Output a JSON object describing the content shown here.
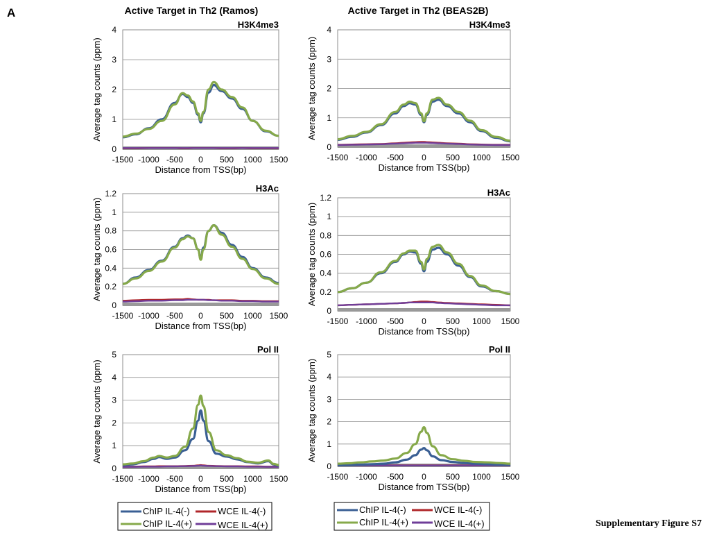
{
  "figure": {
    "panel_letter": "A",
    "column_titles": [
      "Active Target in Th2 (Ramos)",
      "Active Target in Th2 (BEAS2B)"
    ],
    "supplementary_label": "Supplementary Figure S7"
  },
  "legend": {
    "entries": [
      {
        "name": "ChIP IL-4(-)",
        "color": "#3A5F94"
      },
      {
        "name": "WCE IL-4(-)",
        "color": "#B0262A"
      },
      {
        "name": "ChIP IL-4(+)",
        "color": "#86A94A"
      },
      {
        "name": "WCE IL-4(+)",
        "color": "#6F3D98"
      }
    ]
  },
  "colors": {
    "chip_minus": "#3A5F94",
    "chip_plus": "#86A94A",
    "wce_minus": "#B0262A",
    "wce_plus": "#6F3D98",
    "baseline_band": "#999999",
    "gridline": "#8C8C8C"
  },
  "chart_data": [
    {
      "type": "line",
      "column": "Ramos",
      "title": "H3K4me3",
      "xlabel": "Distance from TSS(bp)",
      "ylabel": "Average tag counts (ppm)",
      "xlim": [
        -1500,
        1500
      ],
      "ylim": [
        0,
        4
      ],
      "xticks": [
        "-1500",
        "-1000",
        "-500",
        "0",
        "500",
        "1000",
        "1500"
      ],
      "yticks": [
        "0",
        "1",
        "2",
        "3",
        "4"
      ],
      "x": [
        -1500,
        -1250,
        -1000,
        -750,
        -500,
        -350,
        -250,
        -150,
        -50,
        0,
        50,
        150,
        250,
        400,
        600,
        800,
        1000,
        1250,
        1500
      ],
      "series": [
        {
          "name": "ChIP IL-4(-)",
          "values": [
            0.4,
            0.5,
            0.7,
            1.0,
            1.55,
            1.85,
            1.75,
            1.55,
            1.15,
            0.9,
            1.2,
            1.9,
            2.15,
            1.95,
            1.7,
            1.35,
            0.95,
            0.6,
            0.45
          ]
        },
        {
          "name": "ChIP IL-4(+)",
          "values": [
            0.42,
            0.52,
            0.68,
            0.95,
            1.5,
            1.88,
            1.8,
            1.6,
            1.2,
            0.95,
            1.25,
            2.0,
            2.25,
            2.0,
            1.75,
            1.4,
            0.95,
            0.62,
            0.45
          ]
        },
        {
          "name": "WCE IL-4(-)",
          "values": [
            0.03,
            0.03,
            0.04,
            0.04,
            0.04,
            0.03,
            0.03,
            0.04,
            0.04,
            0.04,
            0.04,
            0.04,
            0.04,
            0.03,
            0.03,
            0.04,
            0.03,
            0.03,
            0.03
          ]
        },
        {
          "name": "WCE IL-4(+)",
          "values": [
            0.04,
            0.04,
            0.04,
            0.04,
            0.04,
            0.04,
            0.04,
            0.04,
            0.04,
            0.04,
            0.04,
            0.04,
            0.04,
            0.04,
            0.04,
            0.04,
            0.04,
            0.04,
            0.04
          ]
        }
      ]
    },
    {
      "type": "line",
      "column": "BEAS2B",
      "title": "H3K4me3",
      "xlabel": "Distance from TSS(bp)",
      "ylabel": "Average tag counts (ppm)",
      "xlim": [
        -1500,
        1500
      ],
      "ylim": [
        0,
        4
      ],
      "xticks": [
        "-1500",
        "-1000",
        "-500",
        "0",
        "500",
        "1000",
        "1500"
      ],
      "yticks": [
        "0",
        "1",
        "2",
        "3",
        "4"
      ],
      "x": [
        -1500,
        -1250,
        -1000,
        -750,
        -500,
        -350,
        -250,
        -150,
        -50,
        0,
        50,
        150,
        250,
        400,
        600,
        800,
        1000,
        1250,
        1500
      ],
      "series": [
        {
          "name": "ChIP IL-4(-)",
          "values": [
            0.25,
            0.35,
            0.5,
            0.75,
            1.15,
            1.4,
            1.5,
            1.45,
            1.1,
            0.85,
            1.1,
            1.55,
            1.62,
            1.4,
            1.15,
            0.85,
            0.55,
            0.32,
            0.2
          ]
        },
        {
          "name": "ChIP IL-4(+)",
          "values": [
            0.27,
            0.38,
            0.52,
            0.78,
            1.2,
            1.45,
            1.55,
            1.5,
            1.15,
            0.88,
            1.15,
            1.62,
            1.68,
            1.45,
            1.2,
            0.9,
            0.58,
            0.35,
            0.22
          ]
        },
        {
          "name": "WCE IL-4(-)",
          "values": [
            0.08,
            0.09,
            0.1,
            0.11,
            0.13,
            0.15,
            0.16,
            0.17,
            0.18,
            0.18,
            0.17,
            0.16,
            0.15,
            0.13,
            0.12,
            0.1,
            0.09,
            0.08,
            0.08
          ]
        },
        {
          "name": "WCE IL-4(+)",
          "values": [
            0.07,
            0.08,
            0.09,
            0.1,
            0.12,
            0.13,
            0.14,
            0.15,
            0.15,
            0.15,
            0.15,
            0.14,
            0.13,
            0.12,
            0.11,
            0.09,
            0.08,
            0.07,
            0.07
          ]
        }
      ]
    },
    {
      "type": "line",
      "column": "Ramos",
      "title": "H3Ac",
      "xlabel": "Distance from TSS(bp)",
      "ylabel": "Average tag counts (ppm)",
      "xlim": [
        -1500,
        1500
      ],
      "ylim": [
        0,
        1.2
      ],
      "xticks": [
        "-1500",
        "-1000",
        "-500",
        "0",
        "500",
        "1000",
        "1500"
      ],
      "yticks": [
        "0",
        "0.2",
        "0.4",
        "0.6",
        "0.8",
        "1",
        "1.2"
      ],
      "x": [
        -1500,
        -1250,
        -1000,
        -750,
        -500,
        -350,
        -250,
        -150,
        -50,
        0,
        50,
        150,
        250,
        400,
        600,
        800,
        1000,
        1250,
        1500
      ],
      "series": [
        {
          "name": "ChIP IL-4(-)",
          "values": [
            0.23,
            0.3,
            0.38,
            0.48,
            0.63,
            0.72,
            0.75,
            0.72,
            0.6,
            0.5,
            0.62,
            0.8,
            0.86,
            0.78,
            0.65,
            0.52,
            0.4,
            0.3,
            0.24
          ]
        },
        {
          "name": "ChIP IL-4(+)",
          "values": [
            0.23,
            0.29,
            0.37,
            0.47,
            0.62,
            0.71,
            0.74,
            0.72,
            0.6,
            0.49,
            0.6,
            0.8,
            0.86,
            0.76,
            0.63,
            0.5,
            0.39,
            0.29,
            0.23
          ]
        },
        {
          "name": "WCE IL-4(-)",
          "values": [
            0.05,
            0.055,
            0.06,
            0.06,
            0.065,
            0.065,
            0.07,
            0.065,
            0.06,
            0.06,
            0.06,
            0.06,
            0.055,
            0.055,
            0.055,
            0.05,
            0.05,
            0.045,
            0.045
          ]
        },
        {
          "name": "WCE IL-4(+)",
          "values": [
            0.04,
            0.045,
            0.05,
            0.05,
            0.055,
            0.055,
            0.06,
            0.06,
            0.06,
            0.06,
            0.06,
            0.055,
            0.055,
            0.05,
            0.05,
            0.045,
            0.045,
            0.04,
            0.04
          ]
        }
      ]
    },
    {
      "type": "line",
      "column": "BEAS2B",
      "title": "H3Ac",
      "xlabel": "Distance from TSS(bp)",
      "ylabel": "Average tag counts (ppm)",
      "xlim": [
        -1500,
        1500
      ],
      "ylim": [
        0,
        1.2
      ],
      "xticks": [
        "-1500",
        "-1000",
        "-500",
        "0",
        "500",
        "1000",
        "1500"
      ],
      "yticks": [
        "0",
        "0.2",
        "0.4",
        "0.6",
        "0.8",
        "1",
        "1.2"
      ],
      "x": [
        -1500,
        -1250,
        -1000,
        -750,
        -500,
        -350,
        -250,
        -150,
        -50,
        0,
        50,
        150,
        250,
        400,
        600,
        800,
        1000,
        1250,
        1500
      ],
      "series": [
        {
          "name": "ChIP IL-4(-)",
          "values": [
            0.2,
            0.24,
            0.3,
            0.4,
            0.52,
            0.6,
            0.63,
            0.62,
            0.5,
            0.42,
            0.52,
            0.65,
            0.67,
            0.6,
            0.48,
            0.36,
            0.26,
            0.21,
            0.18
          ]
        },
        {
          "name": "ChIP IL-4(+)",
          "values": [
            0.2,
            0.24,
            0.3,
            0.41,
            0.53,
            0.61,
            0.64,
            0.64,
            0.52,
            0.44,
            0.55,
            0.68,
            0.7,
            0.62,
            0.5,
            0.37,
            0.27,
            0.21,
            0.18
          ]
        },
        {
          "name": "WCE IL-4(-)",
          "values": [
            0.06,
            0.065,
            0.07,
            0.075,
            0.08,
            0.085,
            0.09,
            0.095,
            0.1,
            0.1,
            0.1,
            0.095,
            0.09,
            0.085,
            0.08,
            0.075,
            0.07,
            0.065,
            0.06
          ]
        },
        {
          "name": "WCE IL-4(+)",
          "values": [
            0.06,
            0.065,
            0.07,
            0.075,
            0.08,
            0.085,
            0.09,
            0.09,
            0.09,
            0.09,
            0.09,
            0.09,
            0.085,
            0.08,
            0.075,
            0.07,
            0.065,
            0.06,
            0.06
          ]
        }
      ]
    },
    {
      "type": "line",
      "column": "Ramos",
      "title": "Pol II",
      "xlabel": "Distance from TSS(bp)",
      "ylabel": "Average tag counts (ppm)",
      "xlim": [
        -1500,
        1500
      ],
      "ylim": [
        0,
        5
      ],
      "xticks": [
        "-1500",
        "-1000",
        "-500",
        "0",
        "500",
        "1000",
        "1500"
      ],
      "yticks": [
        "0",
        "1",
        "2",
        "3",
        "4",
        "5"
      ],
      "x": [
        -1500,
        -1300,
        -1100,
        -900,
        -800,
        -650,
        -500,
        -300,
        -150,
        -50,
        0,
        50,
        150,
        300,
        500,
        700,
        900,
        1100,
        1300,
        1400,
        1500
      ],
      "series": [
        {
          "name": "ChIP IL-4(-)",
          "values": [
            0.15,
            0.18,
            0.28,
            0.42,
            0.5,
            0.42,
            0.48,
            0.8,
            1.3,
            2.1,
            2.55,
            2.1,
            1.2,
            0.65,
            0.52,
            0.4,
            0.28,
            0.22,
            0.32,
            0.18,
            0.12
          ]
        },
        {
          "name": "ChIP IL-4(+)",
          "values": [
            0.18,
            0.22,
            0.32,
            0.48,
            0.55,
            0.48,
            0.55,
            0.95,
            1.75,
            2.8,
            3.2,
            2.75,
            1.6,
            0.8,
            0.58,
            0.45,
            0.3,
            0.25,
            0.35,
            0.2,
            0.15
          ]
        },
        {
          "name": "WCE IL-4(-)",
          "values": [
            0.08,
            0.08,
            0.09,
            0.09,
            0.1,
            0.1,
            0.1,
            0.11,
            0.12,
            0.14,
            0.15,
            0.14,
            0.12,
            0.11,
            0.1,
            0.1,
            0.09,
            0.09,
            0.08,
            0.08,
            0.08
          ]
        },
        {
          "name": "WCE IL-4(+)",
          "values": [
            0.07,
            0.07,
            0.08,
            0.08,
            0.08,
            0.09,
            0.09,
            0.1,
            0.11,
            0.12,
            0.13,
            0.12,
            0.11,
            0.1,
            0.09,
            0.09,
            0.08,
            0.08,
            0.07,
            0.07,
            0.07
          ]
        }
      ]
    },
    {
      "type": "line",
      "column": "BEAS2B",
      "title": "Pol II",
      "xlabel": "Distance from TSS(bp)",
      "ylabel": "Average tag counts (ppm)",
      "xlim": [
        -1500,
        1500
      ],
      "ylim": [
        0,
        5
      ],
      "xticks": [
        "-1500",
        "-1000",
        "-500",
        "0",
        "500",
        "1000",
        "1500"
      ],
      "yticks": [
        "0",
        "1",
        "2",
        "3",
        "4",
        "5"
      ],
      "x": [
        -1500,
        -1300,
        -1100,
        -900,
        -700,
        -500,
        -300,
        -150,
        -50,
        0,
        50,
        150,
        300,
        500,
        700,
        900,
        1100,
        1300,
        1500
      ],
      "series": [
        {
          "name": "ChIP IL-4(-)",
          "values": [
            0.05,
            0.06,
            0.08,
            0.1,
            0.12,
            0.18,
            0.3,
            0.5,
            0.75,
            0.82,
            0.72,
            0.45,
            0.28,
            0.2,
            0.15,
            0.12,
            0.1,
            0.08,
            0.07
          ]
        },
        {
          "name": "ChIP IL-4(+)",
          "values": [
            0.12,
            0.14,
            0.18,
            0.22,
            0.26,
            0.35,
            0.6,
            1.0,
            1.55,
            1.75,
            1.5,
            0.9,
            0.5,
            0.32,
            0.25,
            0.2,
            0.18,
            0.15,
            0.12
          ]
        },
        {
          "name": "WCE IL-4(-)",
          "values": [
            0.05,
            0.05,
            0.05,
            0.05,
            0.05,
            0.05,
            0.05,
            0.05,
            0.05,
            0.05,
            0.05,
            0.05,
            0.05,
            0.05,
            0.05,
            0.05,
            0.05,
            0.05,
            0.05
          ]
        },
        {
          "name": "WCE IL-4(+)",
          "values": [
            0.04,
            0.04,
            0.04,
            0.04,
            0.04,
            0.04,
            0.04,
            0.04,
            0.04,
            0.04,
            0.04,
            0.04,
            0.04,
            0.04,
            0.04,
            0.04,
            0.04,
            0.04,
            0.04
          ]
        }
      ]
    }
  ]
}
